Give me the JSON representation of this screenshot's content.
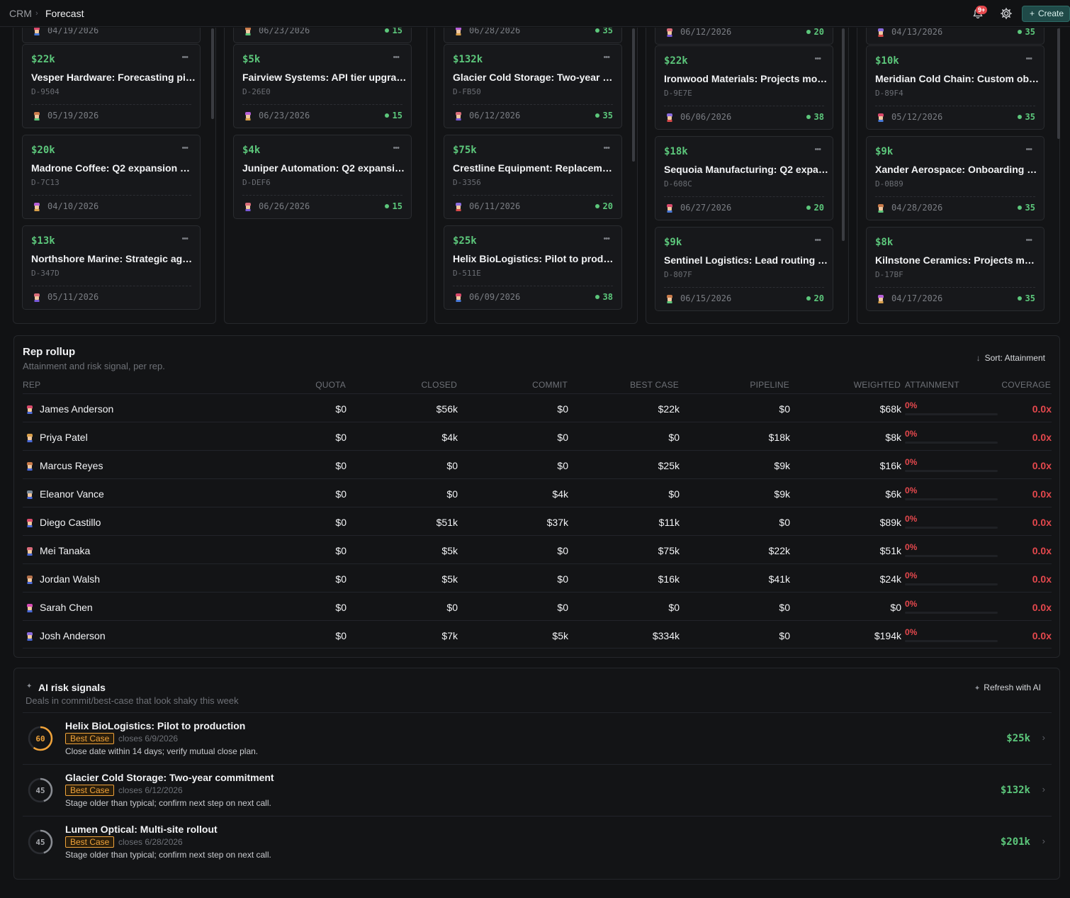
{
  "breadcrumb": {
    "root": "CRM",
    "current": "Forecast"
  },
  "topbar": {
    "notifications_badge": "9+",
    "create_label": "Create"
  },
  "columns": [
    {
      "cards": [
        {
          "amount": "",
          "title": "",
          "id": "",
          "date": "04/19/2026",
          "score": ""
        },
        {
          "amount": "$22k",
          "title": "Vesper Hardware: Forecasting pilo...",
          "id": "D-9504",
          "date": "05/19/2026",
          "score": ""
        },
        {
          "amount": "$20k",
          "title": "Madrone Coffee: Q2 expansion — ...",
          "id": "D-7C13",
          "date": "04/10/2026",
          "score": ""
        },
        {
          "amount": "$13k",
          "title": "Northshore Marine: Strategic agre...",
          "id": "D-347D",
          "date": "05/11/2026",
          "score": ""
        }
      ]
    },
    {
      "cards": [
        {
          "amount": "",
          "title": "",
          "id": "",
          "date": "06/23/2026",
          "score": "15"
        },
        {
          "amount": "$5k",
          "title": "Fairview Systems: API tier upgrade",
          "id": "D-26E0",
          "date": "06/23/2026",
          "score": "15"
        },
        {
          "amount": "$4k",
          "title": "Juniper Automation: Q2 expansion ...",
          "id": "D-DEF6",
          "date": "06/26/2026",
          "score": "15"
        }
      ]
    },
    {
      "cards": [
        {
          "amount": "",
          "title": "",
          "id": "",
          "date": "06/28/2026",
          "score": "35"
        },
        {
          "amount": "$132k",
          "title": "Glacier Cold Storage: Two-year co...",
          "id": "D-FB50",
          "date": "06/12/2026",
          "score": "35"
        },
        {
          "amount": "$75k",
          "title": "Crestline Equipment: Replacement...",
          "id": "D-3356",
          "date": "06/11/2026",
          "score": "20"
        },
        {
          "amount": "$25k",
          "title": "Helix BioLogistics: Pilot to producti...",
          "id": "D-511E",
          "date": "06/09/2026",
          "score": "38"
        }
      ]
    },
    {
      "cards": [
        {
          "amount": "",
          "title": "",
          "id": "",
          "date": "06/12/2026",
          "score": "20"
        },
        {
          "amount": "$22k",
          "title": "Ironwood Materials: Projects modu...",
          "id": "D-9E7E",
          "date": "06/06/2026",
          "score": "38"
        },
        {
          "amount": "$18k",
          "title": "Sequoia Manufacturing: Q2 expan...",
          "id": "D-608C",
          "date": "06/27/2026",
          "score": "20"
        },
        {
          "amount": "$9k",
          "title": "Sentinel Logistics: Lead routing se...",
          "id": "D-807F",
          "date": "06/15/2026",
          "score": "20"
        }
      ]
    },
    {
      "cards": [
        {
          "amount": "",
          "title": "",
          "id": "",
          "date": "04/13/2026",
          "score": "35"
        },
        {
          "amount": "$10k",
          "title": "Meridian Cold Chain: Custom obje...",
          "id": "D-89F4",
          "date": "05/12/2026",
          "score": "35"
        },
        {
          "amount": "$9k",
          "title": "Xander Aerospace: Onboarding + ...",
          "id": "D-0B89",
          "date": "04/28/2026",
          "score": "35"
        },
        {
          "amount": "$8k",
          "title": "Kilnstone Ceramics: Projects mod...",
          "id": "D-17BF",
          "date": "04/17/2026",
          "score": "35"
        }
      ]
    }
  ],
  "rollup": {
    "title": "Rep rollup",
    "subtitle": "Attainment and risk signal, per rep.",
    "sort_label": "Sort: Attainment",
    "headers": [
      "REP",
      "QUOTA",
      "CLOSED",
      "COMMIT",
      "BEST CASE",
      "PIPELINE",
      "WEIGHTED",
      "ATTAINMENT",
      "COVERAGE"
    ],
    "rows": [
      {
        "rep": "James Anderson",
        "quota": "$0",
        "closed": "$56k",
        "commit": "$0",
        "best_case": "$22k",
        "pipeline": "$0",
        "weighted": "$68k",
        "attainment": "0%",
        "coverage": "0.0x"
      },
      {
        "rep": "Priya Patel",
        "quota": "$0",
        "closed": "$4k",
        "commit": "$0",
        "best_case": "$0",
        "pipeline": "$18k",
        "weighted": "$8k",
        "attainment": "0%",
        "coverage": "0.0x"
      },
      {
        "rep": "Marcus Reyes",
        "quota": "$0",
        "closed": "$0",
        "commit": "$0",
        "best_case": "$25k",
        "pipeline": "$9k",
        "weighted": "$16k",
        "attainment": "0%",
        "coverage": "0.0x"
      },
      {
        "rep": "Eleanor Vance",
        "quota": "$0",
        "closed": "$0",
        "commit": "$4k",
        "best_case": "$0",
        "pipeline": "$9k",
        "weighted": "$6k",
        "attainment": "0%",
        "coverage": "0.0x"
      },
      {
        "rep": "Diego Castillo",
        "quota": "$0",
        "closed": "$51k",
        "commit": "$37k",
        "best_case": "$11k",
        "pipeline": "$0",
        "weighted": "$89k",
        "attainment": "0%",
        "coverage": "0.0x"
      },
      {
        "rep": "Mei Tanaka",
        "quota": "$0",
        "closed": "$5k",
        "commit": "$0",
        "best_case": "$75k",
        "pipeline": "$22k",
        "weighted": "$51k",
        "attainment": "0%",
        "coverage": "0.0x"
      },
      {
        "rep": "Jordan Walsh",
        "quota": "$0",
        "closed": "$5k",
        "commit": "$0",
        "best_case": "$16k",
        "pipeline": "$41k",
        "weighted": "$24k",
        "attainment": "0%",
        "coverage": "0.0x"
      },
      {
        "rep": "Sarah Chen",
        "quota": "$0",
        "closed": "$0",
        "commit": "$0",
        "best_case": "$0",
        "pipeline": "$0",
        "weighted": "$0",
        "attainment": "0%",
        "coverage": "0.0x"
      },
      {
        "rep": "Josh Anderson",
        "quota": "$0",
        "closed": "$7k",
        "commit": "$5k",
        "best_case": "$334k",
        "pipeline": "$0",
        "weighted": "$194k",
        "attainment": "0%",
        "coverage": "0.0x"
      }
    ]
  },
  "risk": {
    "title": "AI risk signals",
    "subtitle": "Deals in commit/best-case that look shaky this week",
    "refresh_label": "Refresh with AI",
    "items": [
      {
        "score": "60",
        "score_fraction": 0.6,
        "ring_color": "#f0a33a",
        "title": "Helix BioLogistics: Pilot to production",
        "stage": "Best Case",
        "closes": "closes 6/9/2026",
        "reason": "Close date within 14 days; verify mutual close plan.",
        "amount": "$25k"
      },
      {
        "score": "45",
        "score_fraction": 0.45,
        "ring_color": "#5d6066",
        "title": "Glacier Cold Storage: Two-year commitment",
        "stage": "Best Case",
        "closes": "closes 6/12/2026",
        "reason": "Stage older than typical; confirm next step on next call.",
        "amount": "$132k"
      },
      {
        "score": "45",
        "score_fraction": 0.45,
        "ring_color": "#5d6066",
        "title": "Lumen Optical: Multi-site rollout",
        "stage": "Best Case",
        "closes": "closes 6/28/2026",
        "reason": "Stage older than typical; confirm next step on next call.",
        "amount": "$201k"
      }
    ]
  },
  "colors": {
    "accent_green": "#5cc77b",
    "danger_red": "#e5484d",
    "warning_orange": "#f0a33a"
  }
}
